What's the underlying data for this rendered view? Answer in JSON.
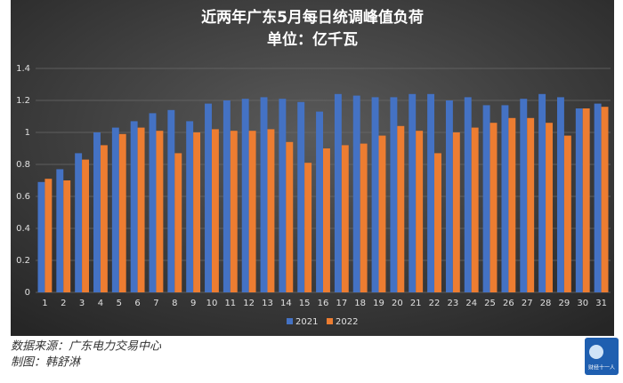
{
  "chart_data": {
    "type": "bar",
    "title": "近两年广东5月每日统调峰值负荷",
    "subtitle": "单位：亿千瓦",
    "categories": [
      "1",
      "2",
      "3",
      "4",
      "5",
      "6",
      "7",
      "8",
      "9",
      "10",
      "11",
      "12",
      "13",
      "14",
      "15",
      "16",
      "17",
      "18",
      "19",
      "20",
      "21",
      "22",
      "23",
      "24",
      "25",
      "26",
      "27",
      "28",
      "29",
      "30",
      "31"
    ],
    "series": [
      {
        "name": "2021",
        "color": "#4472c4",
        "values": [
          0.69,
          0.77,
          0.87,
          1.0,
          1.03,
          1.07,
          1.12,
          1.14,
          1.07,
          1.18,
          1.2,
          1.21,
          1.22,
          1.21,
          1.19,
          1.13,
          1.24,
          1.23,
          1.22,
          1.22,
          1.24,
          1.24,
          1.2,
          1.22,
          1.17,
          1.17,
          1.21,
          1.24,
          1.22,
          1.15,
          1.18
        ]
      },
      {
        "name": "2022",
        "color": "#ed7d31",
        "values": [
          0.71,
          0.7,
          0.83,
          0.92,
          0.99,
          1.03,
          1.01,
          0.87,
          1.0,
          1.02,
          1.01,
          1.01,
          1.02,
          0.94,
          0.81,
          0.9,
          0.92,
          0.93,
          0.98,
          1.04,
          1.01,
          0.87,
          1.0,
          1.03,
          1.06,
          1.09,
          1.09,
          1.06,
          0.98,
          1.15,
          1.16
        ]
      }
    ],
    "ylim": [
      0,
      1.4
    ],
    "yticks": [
      0,
      0.2,
      0.4,
      0.6,
      0.8,
      1,
      1.2,
      1.4
    ],
    "grid": true,
    "legend": "bottom"
  },
  "footer": {
    "source": "数据来源：广东电力交易中心",
    "author": "制图：韩舒淋",
    "logo_text": "财经十一人"
  }
}
